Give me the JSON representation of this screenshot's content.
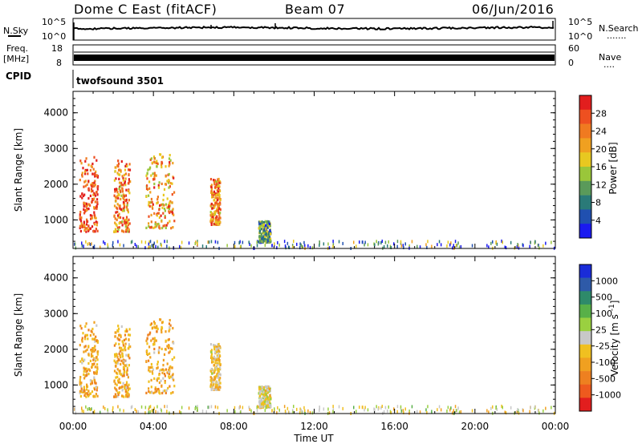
{
  "header": {
    "title": "Dome C East (fitACF)",
    "beam": "Beam 07",
    "date": "06/Jun/2016"
  },
  "strip_panels": {
    "nsky": {
      "label": "N.Sky",
      "left_ticks": [
        "10^5",
        "10^0"
      ],
      "right_ticks": [
        "10^5",
        "10^0"
      ],
      "right_label": "N.Search",
      "right_dots": "......."
    },
    "freq": {
      "label_line1": "Freq.",
      "label_line2": "[MHz]",
      "left_ticks": [
        "18",
        "8"
      ],
      "right_ticks": [
        "60",
        "0"
      ],
      "right_label": "Nave",
      "right_dots": "...."
    },
    "cpid": {
      "label": "CPID",
      "text": "twofsound 3501"
    }
  },
  "axes": {
    "ylabel": "Slant Range [km]",
    "y_ticks": [
      "4000",
      "3000",
      "2000",
      "1000"
    ],
    "y_tick_values": [
      4000,
      3000,
      2000,
      1000
    ],
    "ylim": [
      200,
      4600
    ],
    "x_ticks": [
      "00:00",
      "04:00",
      "08:00",
      "12:00",
      "16:00",
      "20:00",
      "00:00"
    ],
    "x_tick_hours": [
      0,
      4,
      8,
      12,
      16,
      20,
      24
    ],
    "xlim": [
      0,
      24
    ],
    "xlabel": "Time UT"
  },
  "colorbars": {
    "power": {
      "label": "Power [dB]",
      "ticks": [
        "28",
        "24",
        "20",
        "16",
        "12",
        "8",
        "4"
      ],
      "colors": [
        "#1a1af0",
        "#2050b0",
        "#2a7a78",
        "#5a9a5a",
        "#9ac63a",
        "#e8c820",
        "#f0a020",
        "#f07a20",
        "#ee5020",
        "#e21e1e"
      ]
    },
    "velocity": {
      "label": "Velocity [m s^-1]",
      "ticks": [
        "1000",
        "500",
        "100",
        "25",
        "-25",
        "-100",
        "-500",
        "-1000"
      ],
      "colors": [
        "#1a2cd8",
        "#2e5aa8",
        "#2e8a6a",
        "#58b048",
        "#9ad040",
        "#c8c8c8",
        "#f0c020",
        "#f0a020",
        "#ee8020",
        "#ee5a1e",
        "#e21e1e"
      ]
    }
  },
  "chart_data": [
    {
      "type": "heatmap",
      "name": "Power",
      "title": "Dome C East (fitACF)",
      "xlabel": "Time UT",
      "ylabel": "Slant Range [km]",
      "xlim": [
        0,
        24
      ],
      "ylim": [
        200,
        4600
      ],
      "colorbar_label": "Power [dB]",
      "colorbar_range": [
        0,
        30
      ],
      "clusters": [
        {
          "t_start": 0.3,
          "t_end": 1.2,
          "r_low": 700,
          "r_high": 2800,
          "value": 26
        },
        {
          "t_start": 2.0,
          "t_end": 2.8,
          "r_low": 700,
          "r_high": 2700,
          "value": 22
        },
        {
          "t_start": 3.6,
          "t_end": 5.0,
          "r_low": 800,
          "r_high": 2900,
          "value": 20
        },
        {
          "t_start": 6.8,
          "t_end": 7.3,
          "r_low": 900,
          "r_high": 2200,
          "value": 22
        },
        {
          "t_start": 9.2,
          "t_end": 9.8,
          "r_low": 400,
          "r_high": 1000,
          "value": 10
        },
        {
          "t_start": 0.0,
          "t_end": 24.0,
          "r_low": 200,
          "r_high": 450,
          "value": 8
        }
      ]
    },
    {
      "type": "heatmap",
      "name": "Velocity",
      "xlabel": "Time UT",
      "ylabel": "Slant Range [km]",
      "xlim": [
        0,
        24
      ],
      "ylim": [
        200,
        4600
      ],
      "colorbar_label": "Velocity [m s^-1]",
      "colorbar_range": [
        -1000,
        1000
      ],
      "clusters": [
        {
          "t_start": 0.3,
          "t_end": 1.2,
          "r_low": 700,
          "r_high": 2800,
          "value": -300
        },
        {
          "t_start": 2.0,
          "t_end": 2.8,
          "r_low": 700,
          "r_high": 2700,
          "value": -300
        },
        {
          "t_start": 3.6,
          "t_end": 5.0,
          "r_low": 800,
          "r_high": 2900,
          "value": -300
        },
        {
          "t_start": 6.8,
          "t_end": 7.3,
          "r_low": 900,
          "r_high": 2200,
          "value": -150
        },
        {
          "t_start": 9.2,
          "t_end": 9.8,
          "r_low": 400,
          "r_high": 1000,
          "value": -60
        },
        {
          "t_start": 0.0,
          "t_end": 24.0,
          "r_low": 200,
          "r_high": 450,
          "value": -40
        }
      ]
    }
  ]
}
